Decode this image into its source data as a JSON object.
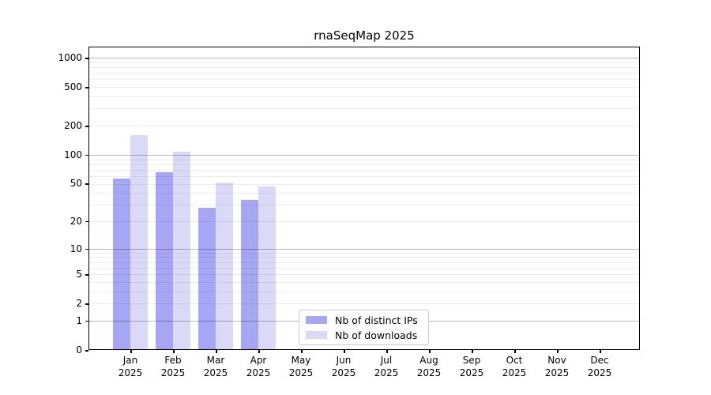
{
  "chart_data": {
    "type": "bar",
    "title": "rnaSeqMap 2025",
    "categories": [
      {
        "month": "Jan",
        "year": "2025"
      },
      {
        "month": "Feb",
        "year": "2025"
      },
      {
        "month": "Mar",
        "year": "2025"
      },
      {
        "month": "Apr",
        "year": "2025"
      },
      {
        "month": "May",
        "year": "2025"
      },
      {
        "month": "Jun",
        "year": "2025"
      },
      {
        "month": "Jul",
        "year": "2025"
      },
      {
        "month": "Aug",
        "year": "2025"
      },
      {
        "month": "Sep",
        "year": "2025"
      },
      {
        "month": "Oct",
        "year": "2025"
      },
      {
        "month": "Nov",
        "year": "2025"
      },
      {
        "month": "Dec",
        "year": "2025"
      }
    ],
    "series": [
      {
        "name": "Nb of distinct IPs",
        "color": "#a6a6f4",
        "values": [
          57,
          66,
          28,
          34,
          0,
          0,
          0,
          0,
          0,
          0,
          0,
          0
        ]
      },
      {
        "name": "Nb of downloads",
        "color": "#dadaf8",
        "values": [
          160,
          108,
          51,
          47,
          0,
          0,
          0,
          0,
          0,
          0,
          0,
          0
        ]
      }
    ],
    "y_axis": {
      "scale": "log1p",
      "ticks": [
        0,
        1,
        2,
        5,
        10,
        20,
        50,
        100,
        200,
        500,
        1000
      ],
      "major_gridlines": [
        1,
        10,
        100,
        1000
      ],
      "ylim": [
        0,
        1290
      ]
    },
    "xlabel": "",
    "ylabel": "",
    "grid": true,
    "legend_position": "inside-bottom-center"
  },
  "colors": {
    "background": "#ffffff",
    "axis_frame": "#000000",
    "grid_minor": "rgba(0,0,0,0.07)",
    "grid_major": "rgba(0,0,0,0.28)"
  }
}
